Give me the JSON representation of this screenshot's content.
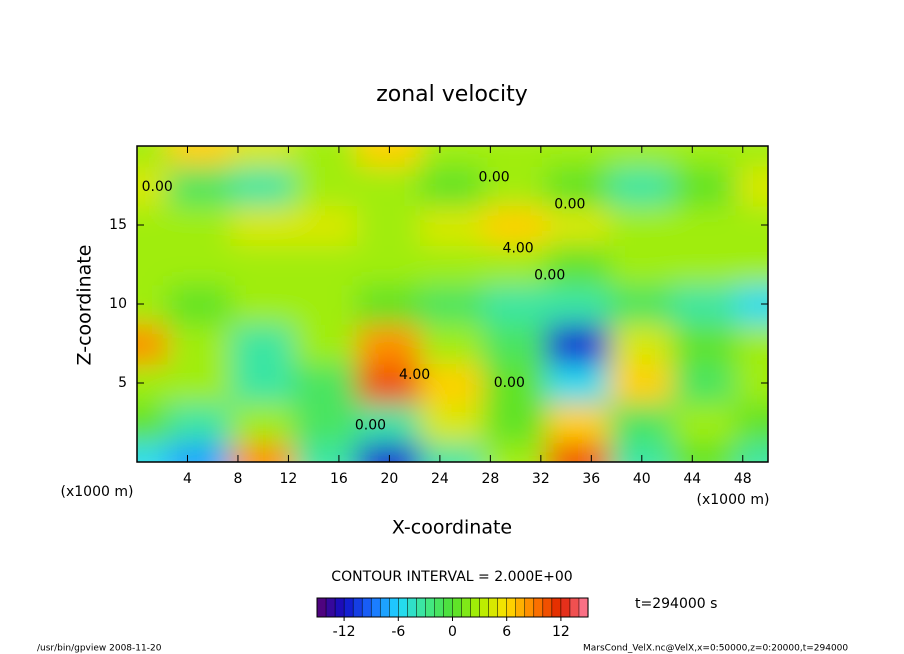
{
  "chart_data": {
    "type": "contour",
    "title": "zonal velocity",
    "xlabel": "X-coordinate",
    "ylabel": "Z-coordinate",
    "xunit_labels": [
      "(x1000 m)",
      "(x1000 m)"
    ],
    "x": [
      0,
      5,
      10,
      15,
      20,
      25,
      30,
      35,
      40,
      45,
      50
    ],
    "z": [
      0,
      2.5,
      5,
      7.5,
      10,
      12.5,
      15,
      17.5,
      20
    ],
    "values": [
      [
        -6,
        -8,
        8,
        -4,
        -12,
        -4,
        2,
        10,
        -4,
        0,
        -4
      ],
      [
        0,
        -4,
        2,
        -2,
        -4,
        4,
        0,
        6,
        -2,
        2,
        0
      ],
      [
        2,
        2,
        -4,
        -2,
        10,
        6,
        0,
        -6,
        6,
        -2,
        2
      ],
      [
        8,
        2,
        -4,
        2,
        8,
        2,
        -2,
        -12,
        4,
        0,
        2
      ],
      [
        2,
        0,
        2,
        2,
        0,
        -2,
        -4,
        -4,
        -2,
        -4,
        -6
      ],
      [
        2,
        2,
        2,
        2,
        2,
        2,
        2,
        0,
        2,
        2,
        2
      ],
      [
        2,
        2,
        4,
        4,
        2,
        4,
        6,
        4,
        2,
        2,
        2
      ],
      [
        4,
        -2,
        -4,
        2,
        2,
        0,
        2,
        0,
        -4,
        0,
        4
      ],
      [
        2,
        6,
        4,
        2,
        6,
        2,
        2,
        2,
        2,
        2,
        2
      ]
    ],
    "xlim": [
      0,
      50
    ],
    "ylim": [
      0,
      20
    ],
    "xticks": [
      4,
      8,
      12,
      16,
      20,
      24,
      28,
      32,
      36,
      40,
      44,
      48
    ],
    "yticks": [
      5,
      10,
      15
    ],
    "contour_labels": [
      {
        "text": "0.00",
        "x": 1.6,
        "y": 17.4
      },
      {
        "text": "0.00",
        "x": 28.3,
        "y": 18
      },
      {
        "text": "0.00",
        "x": 34.3,
        "y": 16.3
      },
      {
        "text": "4.00",
        "x": 30.2,
        "y": 13.5
      },
      {
        "text": "0.00",
        "x": 32.7,
        "y": 11.8
      },
      {
        "text": "4.00",
        "x": 22,
        "y": 5.5
      },
      {
        "text": "0.00",
        "x": 29.5,
        "y": 5
      },
      {
        "text": "0.00",
        "x": 18.5,
        "y": 2.3
      }
    ],
    "contour_interval_label": "CONTOUR INTERVAL = 2.000E+00",
    "time_label": "t=294000 s",
    "clim": [
      -15,
      15
    ],
    "cticks": [
      -12,
      -6,
      0,
      6,
      12
    ],
    "colormap": [
      "#5a0070",
      "#1010c8",
      "#1a6cff",
      "#20d8ff",
      "#40e890",
      "#50e030",
      "#b0f000",
      "#ffe000",
      "#ff8000",
      "#e02000",
      "#ff80a0"
    ],
    "footer_left": "/usr/bin/gpview  2008-11-20",
    "footer_right": "MarsCond_VelX.nc@VelX,x=0:50000,z=0:20000,t=294000"
  }
}
